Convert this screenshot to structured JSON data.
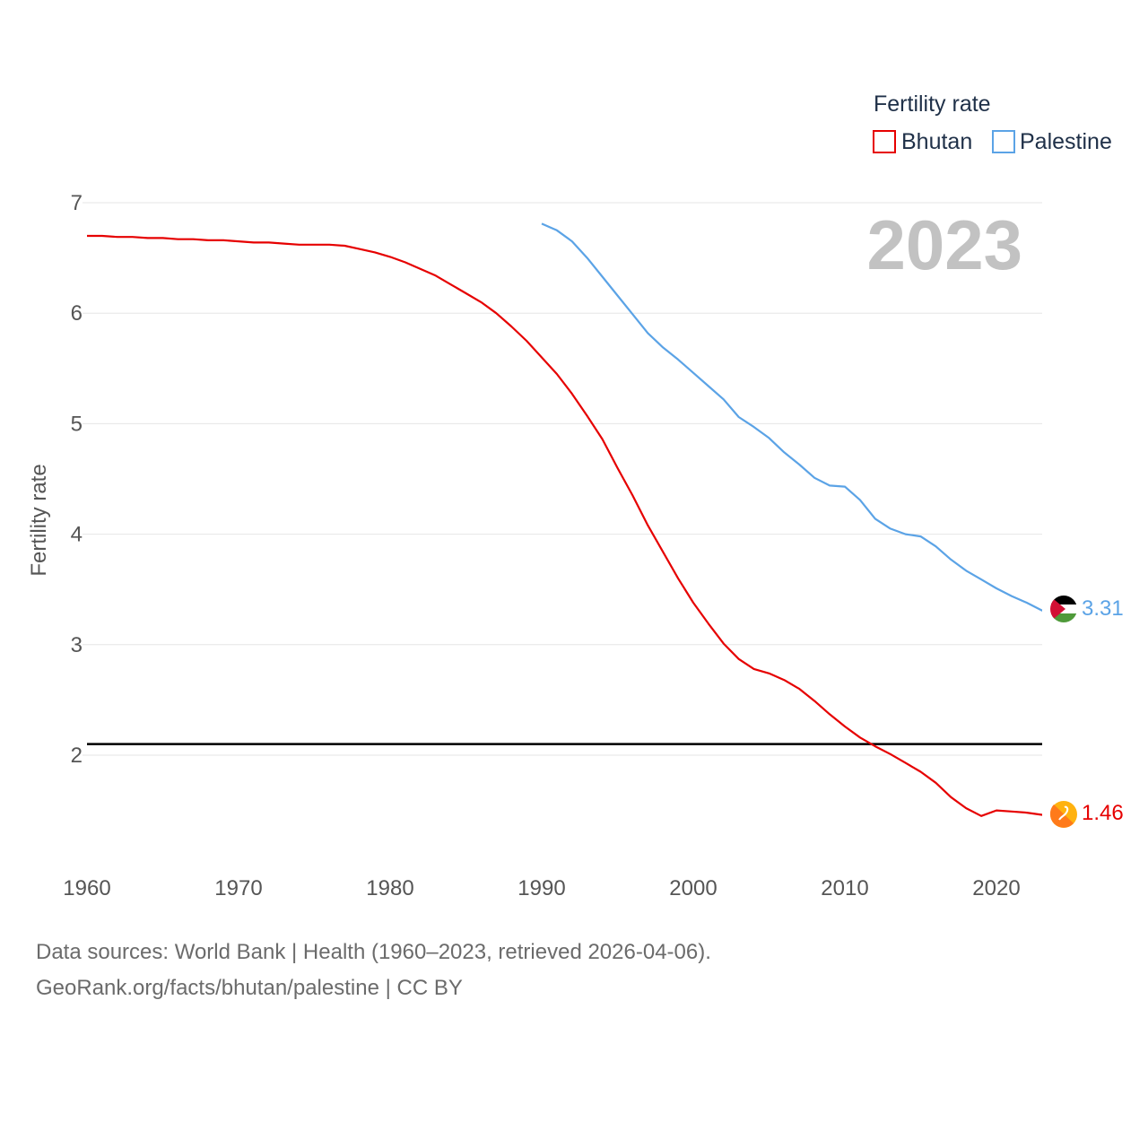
{
  "legend": {
    "title": "Fertility rate",
    "items": [
      {
        "label": "Bhutan",
        "color": "#e60000"
      },
      {
        "label": "Palestine",
        "color": "#5ba3e6"
      }
    ]
  },
  "year_label": "2023",
  "source": {
    "line1": "Data sources: World Bank | Health (1960–2023, retrieved 2026-04-06).",
    "line2": "GeoRank.org/facts/bhutan/palestine | CC BY"
  },
  "chart_data": {
    "type": "line",
    "title": "Fertility rate",
    "xlabel": "",
    "ylabel": "Fertility rate",
    "xlim": [
      1960,
      2023
    ],
    "ylim": [
      1.5,
      7
    ],
    "x_ticks": [
      "1960",
      "1970",
      "1980",
      "1990",
      "2000",
      "2010",
      "2020"
    ],
    "y_ticks": [
      "2",
      "3",
      "4",
      "5",
      "6",
      "7"
    ],
    "grid": true,
    "reference_line": {
      "y": 2.1
    },
    "legend_position": "top-right",
    "series": [
      {
        "name": "Bhutan",
        "color": "#e60000",
        "end_label": "1.46",
        "points": [
          [
            1960,
            6.7
          ],
          [
            1961,
            6.7
          ],
          [
            1962,
            6.69
          ],
          [
            1963,
            6.69
          ],
          [
            1964,
            6.68
          ],
          [
            1965,
            6.68
          ],
          [
            1966,
            6.67
          ],
          [
            1967,
            6.67
          ],
          [
            1968,
            6.66
          ],
          [
            1969,
            6.66
          ],
          [
            1970,
            6.65
          ],
          [
            1971,
            6.64
          ],
          [
            1972,
            6.64
          ],
          [
            1973,
            6.63
          ],
          [
            1974,
            6.62
          ],
          [
            1975,
            6.62
          ],
          [
            1976,
            6.62
          ],
          [
            1977,
            6.61
          ],
          [
            1978,
            6.58
          ],
          [
            1979,
            6.55
          ],
          [
            1980,
            6.51
          ],
          [
            1981,
            6.46
          ],
          [
            1982,
            6.4
          ],
          [
            1983,
            6.34
          ],
          [
            1984,
            6.26
          ],
          [
            1985,
            6.18
          ],
          [
            1986,
            6.1
          ],
          [
            1987,
            6.0
          ],
          [
            1988,
            5.88
          ],
          [
            1989,
            5.75
          ],
          [
            1990,
            5.6
          ],
          [
            1991,
            5.45
          ],
          [
            1992,
            5.27
          ],
          [
            1993,
            5.07
          ],
          [
            1994,
            4.86
          ],
          [
            1995,
            4.6
          ],
          [
            1996,
            4.35
          ],
          [
            1997,
            4.08
          ],
          [
            1998,
            3.84
          ],
          [
            1999,
            3.6
          ],
          [
            2000,
            3.38
          ],
          [
            2001,
            3.19
          ],
          [
            2002,
            3.01
          ],
          [
            2003,
            2.87
          ],
          [
            2004,
            2.78
          ],
          [
            2005,
            2.74
          ],
          [
            2006,
            2.68
          ],
          [
            2007,
            2.6
          ],
          [
            2008,
            2.49
          ],
          [
            2009,
            2.37
          ],
          [
            2010,
            2.26
          ],
          [
            2011,
            2.16
          ],
          [
            2012,
            2.08
          ],
          [
            2013,
            2.01
          ],
          [
            2014,
            1.93
          ],
          [
            2015,
            1.85
          ],
          [
            2016,
            1.75
          ],
          [
            2017,
            1.62
          ],
          [
            2018,
            1.52
          ],
          [
            2019,
            1.45
          ],
          [
            2020,
            1.5
          ],
          [
            2021,
            1.49
          ],
          [
            2022,
            1.48
          ],
          [
            2023,
            1.46
          ]
        ]
      },
      {
        "name": "Palestine",
        "color": "#5ba3e6",
        "end_label": "3.31",
        "points": [
          [
            1990,
            6.81
          ],
          [
            1991,
            6.75
          ],
          [
            1992,
            6.65
          ],
          [
            1993,
            6.5
          ],
          [
            1994,
            6.33
          ],
          [
            1995,
            6.16
          ],
          [
            1996,
            5.99
          ],
          [
            1997,
            5.82
          ],
          [
            1998,
            5.69
          ],
          [
            1999,
            5.58
          ],
          [
            2000,
            5.46
          ],
          [
            2001,
            5.34
          ],
          [
            2002,
            5.22
          ],
          [
            2003,
            5.06
          ],
          [
            2004,
            4.97
          ],
          [
            2005,
            4.87
          ],
          [
            2006,
            4.74
          ],
          [
            2007,
            4.63
          ],
          [
            2008,
            4.51
          ],
          [
            2009,
            4.44
          ],
          [
            2010,
            4.43
          ],
          [
            2011,
            4.31
          ],
          [
            2012,
            4.14
          ],
          [
            2013,
            4.05
          ],
          [
            2014,
            4.0
          ],
          [
            2015,
            3.98
          ],
          [
            2016,
            3.89
          ],
          [
            2017,
            3.77
          ],
          [
            2018,
            3.67
          ],
          [
            2019,
            3.59
          ],
          [
            2020,
            3.51
          ],
          [
            2021,
            3.44
          ],
          [
            2022,
            3.38
          ],
          [
            2023,
            3.31
          ]
        ]
      }
    ]
  }
}
